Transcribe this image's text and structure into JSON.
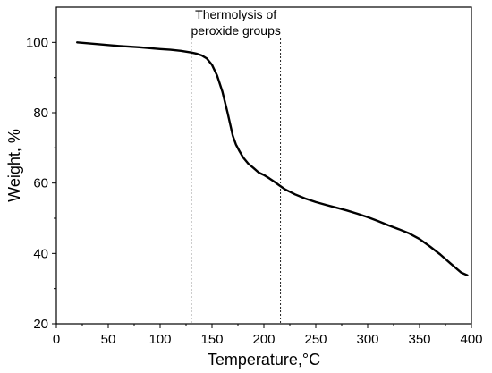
{
  "chart_data": {
    "type": "line",
    "xlabel": "Temperature,°C",
    "ylabel": "Weight, %",
    "xlim": [
      0,
      400
    ],
    "ylim": [
      20,
      110
    ],
    "xticks": [
      0,
      50,
      100,
      150,
      200,
      250,
      300,
      350,
      400
    ],
    "yticks": [
      20,
      40,
      60,
      80,
      100
    ],
    "grid": false,
    "annotation": {
      "line1": "Thermolysis of",
      "line2": "peroxide groups"
    },
    "markers": [
      130,
      216
    ],
    "series": [
      {
        "x": [
          20,
          40,
          60,
          80,
          100,
          110,
          120,
          130,
          135,
          140,
          145,
          150,
          155,
          160,
          165,
          170,
          173,
          176,
          180,
          185,
          190,
          195,
          200,
          205,
          210,
          215,
          220,
          230,
          240,
          250,
          260,
          270,
          280,
          290,
          300,
          310,
          320,
          330,
          340,
          350,
          360,
          370,
          380,
          390,
          396
        ],
        "y": [
          100.0,
          99.5,
          99.0,
          98.6,
          98.1,
          97.9,
          97.6,
          97.1,
          96.8,
          96.3,
          95.4,
          93.6,
          90.5,
          86.0,
          80.0,
          73.5,
          71.0,
          69.3,
          67.3,
          65.5,
          64.3,
          63.0,
          62.3,
          61.4,
          60.4,
          59.3,
          58.3,
          56.8,
          55.6,
          54.6,
          53.8,
          53.0,
          52.2,
          51.3,
          50.3,
          49.2,
          48.0,
          46.9,
          45.7,
          44.1,
          42.0,
          39.7,
          37.1,
          34.6,
          33.8
        ]
      }
    ]
  }
}
